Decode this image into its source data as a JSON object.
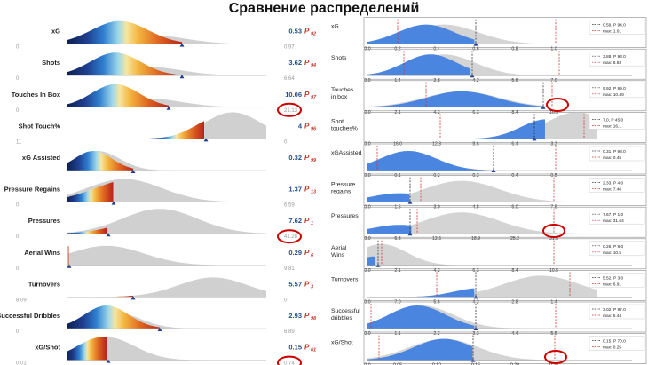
{
  "title": "Сравнение распределений",
  "chart_data": [
    {
      "type": "area",
      "panel": "left",
      "rows": [
        {
          "label": "xG",
          "value": "0.53",
          "percentile": "92",
          "max_label": "0.97",
          "min_label": "0"
        },
        {
          "label": "Shots",
          "value": "3.62",
          "percentile": "94",
          "max_label": "6.64",
          "min_label": "0"
        },
        {
          "label": "Touches In Box",
          "value": "10.06",
          "percentile": "97",
          "max_label": "21.13",
          "min_label": "0"
        },
        {
          "label": "Shot Touch%",
          "value": "4",
          "percentile": "96",
          "max_label": "0",
          "min_label": "11"
        },
        {
          "label": "xG Assisted",
          "value": "0.32",
          "percentile": "99",
          "max_label": "",
          "min_label": ""
        },
        {
          "label": "Pressure Regains",
          "value": "1.37",
          "percentile": "13",
          "max_label": "6.59",
          "min_label": "0"
        },
        {
          "label": "Pressures",
          "value": "7.62",
          "percentile": "1",
          "max_label": "41.28",
          "min_label": "0"
        },
        {
          "label": "Aerial Wins",
          "value": "0.29",
          "percentile": "6",
          "max_label": "9.81",
          "min_label": "0"
        },
        {
          "label": "Turnovers",
          "value": "5.57",
          "percentile": "3",
          "max_label": "0",
          "min_label": "8.09"
        },
        {
          "label": "Successful Dribbles",
          "value": "2.93",
          "percentile": "98",
          "max_label": "6.89",
          "min_label": "0"
        },
        {
          "label": "xG/Shot",
          "value": "0.15",
          "percentile": "61",
          "max_label": "0.74",
          "min_label": "0.01"
        }
      ],
      "colors": {
        "value": "#1f4e8c",
        "percentile": "#c0392b",
        "highlight": "#cc0000"
      }
    },
    {
      "type": "area",
      "panel": "right",
      "rows": [
        {
          "label": "xG",
          "ticks": [
            "0.2",
            "0.4",
            "0.6",
            "0.8",
            "1.0"
          ],
          "legend": [
            "0.59, P 94.0",
            "max: 1.01"
          ]
        },
        {
          "label": "Shots",
          "ticks": [
            "1.4",
            "2.8",
            "4.2",
            "5.6",
            "7.0"
          ],
          "legend": [
            "3.88, P 93.0",
            "max: 6.93"
          ]
        },
        {
          "label": "Touches in box",
          "ticks": [
            "2.1",
            "4.2",
            "6.3",
            "8.4",
            "10.5"
          ],
          "legend": [
            "9.92, P 99.0",
            "max: 10.49"
          ]
        },
        {
          "label": "Shot touches%",
          "ticks": [
            "16.0",
            "12.8",
            "9.6",
            "6.4",
            "3.2"
          ],
          "legend": [
            "7.0, P 45.0",
            "max: 16.1"
          ]
        },
        {
          "label": "xGAssisted",
          "ticks": [
            "0.1",
            "0.2",
            "0.3",
            "0.4",
            "0.5"
          ],
          "legend": [
            "0.31, P 98.0",
            "max: 0.45"
          ]
        },
        {
          "label": "Pressure regains",
          "ticks": [
            "1.5",
            "3.0",
            "4.5",
            "6.0",
            "7.5"
          ],
          "legend": [
            "2.33, P 4.0",
            "max: 7.46"
          ]
        },
        {
          "label": "Pressures",
          "ticks": [
            "6.3",
            "12.6",
            "18.9",
            "25.2",
            "31.5"
          ],
          "legend": [
            "7.67, P 1.0",
            "max: 31.64"
          ]
        },
        {
          "label": "Aerial Wins",
          "ticks": [
            "2.1",
            "4.2",
            "6.3",
            "8.4",
            "10.5"
          ],
          "legend": [
            "0.26, P 8.0",
            "max: 10.5"
          ]
        },
        {
          "label": "Turnovers",
          "ticks": [
            "7.0",
            "5.6",
            "4.2",
            "2.8",
            "1.4"
          ],
          "legend": [
            "5.52, P 3.0",
            "max: 6.91"
          ]
        },
        {
          "label": "Successful dribbles",
          "ticks": [
            "1.1",
            "2.2",
            "3.3",
            "4.4",
            "5.5"
          ],
          "legend": [
            "3.02, P 97.0",
            "max: 5.44"
          ]
        },
        {
          "label": "xG/Shot",
          "ticks": [
            "0.05",
            "0.10",
            "0.15",
            "0.20",
            "0.25"
          ],
          "legend": [
            "0.15, P 70.0",
            "max: 0.25"
          ]
        }
      ],
      "zero_label": "0.0",
      "colors": {
        "fill": "#4a86e0",
        "grey": "#d4d4d4",
        "red_line": "#cc3333",
        "black_line": "#333333",
        "circle": "#d00000"
      }
    }
  ]
}
